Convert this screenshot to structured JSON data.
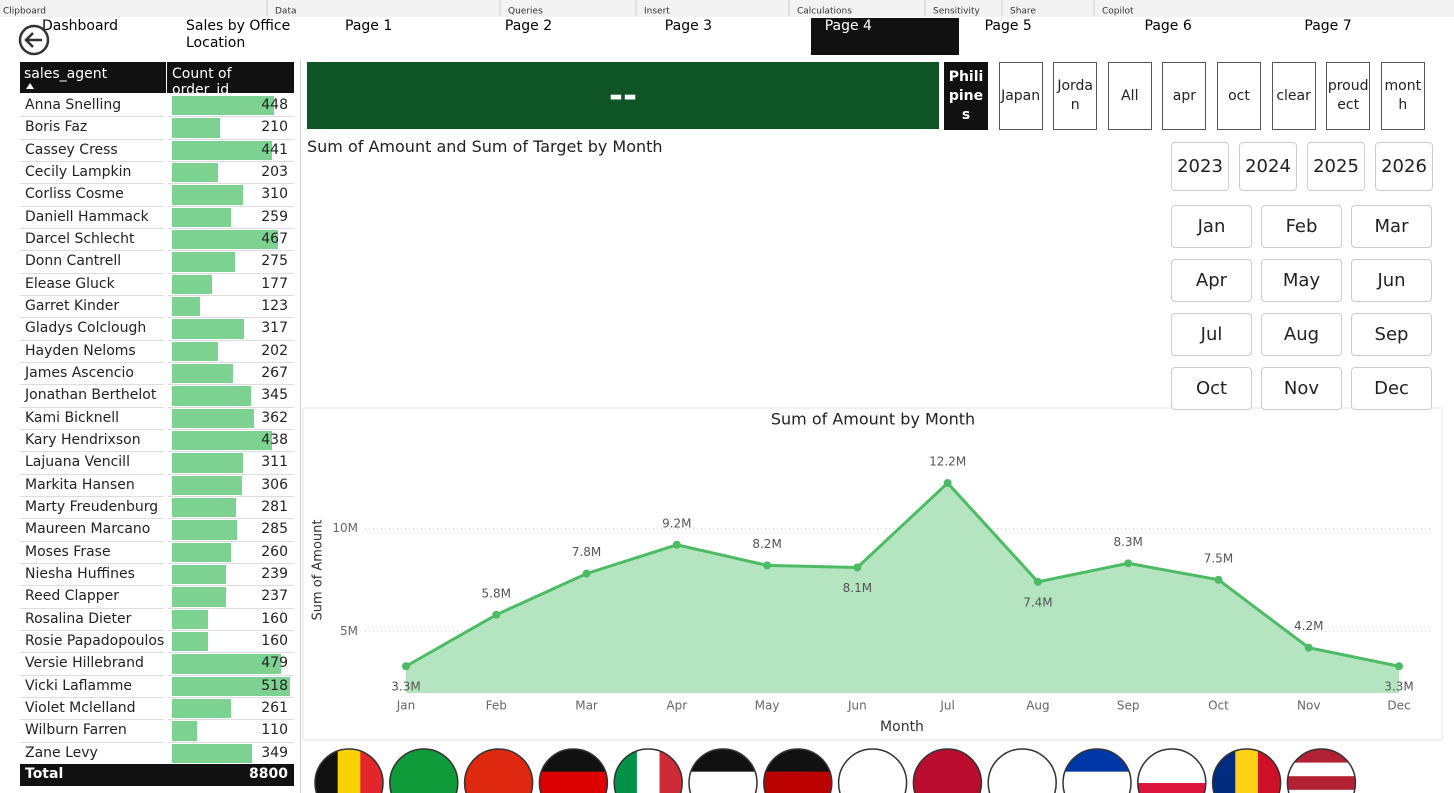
{
  "ribbon": [
    "Clipboard",
    "Data",
    "Queries",
    "Insert",
    "Calculations",
    "Sensitivity",
    "Share",
    "Copilot"
  ],
  "nav": {
    "items": [
      "Dashboard",
      "Sales by Office Location",
      "Page 1",
      "Page 2",
      "Page 3",
      "Page 4",
      "Page 5",
      "Page 6",
      "Page 7"
    ],
    "active": 5
  },
  "table": {
    "header": [
      "sales_agent",
      "Count of order_id"
    ],
    "rows": [
      [
        "Anna Snelling",
        448
      ],
      [
        "Boris Faz",
        210
      ],
      [
        "Cassey Cress",
        441
      ],
      [
        "Cecily Lampkin",
        203
      ],
      [
        "Corliss Cosme",
        310
      ],
      [
        "Daniell Hammack",
        259
      ],
      [
        "Darcel Schlecht",
        467
      ],
      [
        "Donn Cantrell",
        275
      ],
      [
        "Elease Gluck",
        177
      ],
      [
        "Garret Kinder",
        123
      ],
      [
        "Gladys Colclough",
        317
      ],
      [
        "Hayden Neloms",
        202
      ],
      [
        "James Ascencio",
        267
      ],
      [
        "Jonathan Berthelot",
        345
      ],
      [
        "Kami Bicknell",
        362
      ],
      [
        "Kary Hendrixson",
        438
      ],
      [
        "Lajuana Vencill",
        311
      ],
      [
        "Markita Hansen",
        306
      ],
      [
        "Marty Freudenburg",
        281
      ],
      [
        "Maureen Marcano",
        285
      ],
      [
        "Moses Frase",
        260
      ],
      [
        "Niesha Huffines",
        239
      ],
      [
        "Reed Clapper",
        237
      ],
      [
        "Rosalina Dieter",
        160
      ],
      [
        "Rosie Papadopoulos",
        160
      ],
      [
        "Versie Hillebrand",
        479
      ],
      [
        "Vicki Laflamme",
        518
      ],
      [
        "Violet Mclelland",
        261
      ],
      [
        "Wilburn Farren",
        110
      ],
      [
        "Zane Levy",
        349
      ]
    ],
    "total": [
      "Total",
      8800
    ],
    "bar_color": "#7dd191"
  },
  "card": {
    "value": "--"
  },
  "slicer": {
    "items": [
      "Philipines",
      "Japan",
      "Jordan",
      "All",
      "apr",
      "oct",
      "clear",
      "proudect",
      "month"
    ],
    "selected": 0
  },
  "years": [
    "2023",
    "2024",
    "2025",
    "2026"
  ],
  "months": [
    "Jan",
    "Feb",
    "Mar",
    "Apr",
    "May",
    "Jun",
    "Jul",
    "Aug",
    "Sep",
    "Oct",
    "Nov",
    "Dec"
  ],
  "empty_chart": {
    "title": "Sum of Amount and Sum of Target by Month"
  },
  "chart_data": {
    "type": "line",
    "title": "Sum of Amount by Month",
    "x_label": "Month",
    "y_label": "Sum of Amount",
    "categories": [
      "Jan",
      "Feb",
      "Mar",
      "Apr",
      "May",
      "Jun",
      "Jul",
      "Aug",
      "Sep",
      "Oct",
      "Nov",
      "Dec"
    ],
    "values": [
      3300000,
      5800000,
      7800000,
      9200000,
      8200000,
      8100000,
      12200000,
      7400000,
      8300000,
      7500000,
      4200000,
      3300000
    ],
    "value_labels": [
      "3.3M",
      "5.8M",
      "7.8M",
      "9.2M",
      "8.2M",
      "8.1M",
      "12.2M",
      "7.4M",
      "8.3M",
      "7.5M",
      "4.2M",
      "3.3M"
    ],
    "color": "#4cbb64",
    "fill": "#b5e4c1",
    "ylim": [
      2000000,
      14000000
    ],
    "yticks": [
      {
        "value": 5000000,
        "label": "5M"
      },
      {
        "value": 10000000,
        "label": "10M"
      }
    ],
    "grid": true
  }
}
